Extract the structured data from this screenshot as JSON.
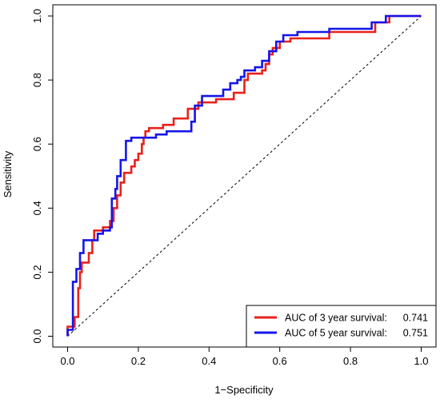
{
  "chart_data": {
    "type": "line",
    "title": "",
    "xlabel": "1−Specificity",
    "ylabel": "Sensitivity",
    "xlim": [
      0,
      1
    ],
    "ylim": [
      0,
      1
    ],
    "xticks": [
      "0.0",
      "0.2",
      "0.4",
      "0.6",
      "0.8",
      "1.0"
    ],
    "yticks": [
      "0.0",
      "0.2",
      "0.4",
      "0.6",
      "0.8",
      "1.0"
    ],
    "grid": false,
    "legend_position": "bottom-right",
    "reference_line": {
      "style": "dashed",
      "from": [
        0,
        0
      ],
      "to": [
        1,
        1
      ]
    },
    "series": [
      {
        "name": "AUC of 3 year survival:",
        "value_label": "0.741",
        "color": "#e8211c",
        "points": [
          [
            0.0,
            0.0
          ],
          [
            0.0,
            0.03
          ],
          [
            0.02,
            0.03
          ],
          [
            0.02,
            0.06
          ],
          [
            0.03,
            0.06
          ],
          [
            0.03,
            0.15
          ],
          [
            0.035,
            0.15
          ],
          [
            0.035,
            0.2
          ],
          [
            0.04,
            0.2
          ],
          [
            0.04,
            0.23
          ],
          [
            0.06,
            0.23
          ],
          [
            0.06,
            0.26
          ],
          [
            0.07,
            0.26
          ],
          [
            0.07,
            0.3
          ],
          [
            0.075,
            0.3
          ],
          [
            0.075,
            0.33
          ],
          [
            0.1,
            0.33
          ],
          [
            0.1,
            0.34
          ],
          [
            0.12,
            0.34
          ],
          [
            0.12,
            0.36
          ],
          [
            0.13,
            0.36
          ],
          [
            0.13,
            0.4
          ],
          [
            0.14,
            0.4
          ],
          [
            0.14,
            0.44
          ],
          [
            0.15,
            0.44
          ],
          [
            0.15,
            0.48
          ],
          [
            0.16,
            0.48
          ],
          [
            0.16,
            0.51
          ],
          [
            0.18,
            0.51
          ],
          [
            0.18,
            0.53
          ],
          [
            0.19,
            0.53
          ],
          [
            0.19,
            0.55
          ],
          [
            0.2,
            0.55
          ],
          [
            0.2,
            0.57
          ],
          [
            0.21,
            0.57
          ],
          [
            0.21,
            0.6
          ],
          [
            0.215,
            0.6
          ],
          [
            0.215,
            0.62
          ],
          [
            0.22,
            0.62
          ],
          [
            0.22,
            0.64
          ],
          [
            0.23,
            0.64
          ],
          [
            0.23,
            0.65
          ],
          [
            0.27,
            0.65
          ],
          [
            0.27,
            0.66
          ],
          [
            0.3,
            0.66
          ],
          [
            0.3,
            0.68
          ],
          [
            0.34,
            0.68
          ],
          [
            0.34,
            0.71
          ],
          [
            0.37,
            0.71
          ],
          [
            0.37,
            0.73
          ],
          [
            0.42,
            0.73
          ],
          [
            0.42,
            0.74
          ],
          [
            0.47,
            0.74
          ],
          [
            0.47,
            0.76
          ],
          [
            0.5,
            0.76
          ],
          [
            0.5,
            0.8
          ],
          [
            0.51,
            0.8
          ],
          [
            0.51,
            0.82
          ],
          [
            0.55,
            0.82
          ],
          [
            0.55,
            0.83
          ],
          [
            0.56,
            0.83
          ],
          [
            0.56,
            0.85
          ],
          [
            0.57,
            0.85
          ],
          [
            0.57,
            0.88
          ],
          [
            0.58,
            0.88
          ],
          [
            0.58,
            0.9
          ],
          [
            0.6,
            0.9
          ],
          [
            0.6,
            0.92
          ],
          [
            0.63,
            0.92
          ],
          [
            0.63,
            0.93
          ],
          [
            0.74,
            0.93
          ],
          [
            0.74,
            0.95
          ],
          [
            0.87,
            0.95
          ],
          [
            0.87,
            0.98
          ],
          [
            0.91,
            0.98
          ],
          [
            0.91,
            1.0
          ],
          [
            1.0,
            1.0
          ]
        ]
      },
      {
        "name": "AUC of 5 year survival:",
        "value_label": "0.751",
        "color": "#1515e8",
        "points": [
          [
            0.0,
            0.0
          ],
          [
            0.0,
            0.02
          ],
          [
            0.015,
            0.02
          ],
          [
            0.015,
            0.17
          ],
          [
            0.025,
            0.17
          ],
          [
            0.025,
            0.21
          ],
          [
            0.035,
            0.21
          ],
          [
            0.035,
            0.26
          ],
          [
            0.045,
            0.26
          ],
          [
            0.045,
            0.3
          ],
          [
            0.085,
            0.3
          ],
          [
            0.085,
            0.32
          ],
          [
            0.1,
            0.32
          ],
          [
            0.1,
            0.33
          ],
          [
            0.12,
            0.33
          ],
          [
            0.12,
            0.34
          ],
          [
            0.125,
            0.34
          ],
          [
            0.125,
            0.43
          ],
          [
            0.135,
            0.43
          ],
          [
            0.135,
            0.46
          ],
          [
            0.14,
            0.46
          ],
          [
            0.14,
            0.5
          ],
          [
            0.15,
            0.5
          ],
          [
            0.15,
            0.55
          ],
          [
            0.165,
            0.55
          ],
          [
            0.165,
            0.61
          ],
          [
            0.18,
            0.61
          ],
          [
            0.18,
            0.62
          ],
          [
            0.25,
            0.62
          ],
          [
            0.25,
            0.63
          ],
          [
            0.28,
            0.63
          ],
          [
            0.28,
            0.64
          ],
          [
            0.35,
            0.64
          ],
          [
            0.35,
            0.67
          ],
          [
            0.36,
            0.67
          ],
          [
            0.36,
            0.72
          ],
          [
            0.38,
            0.72
          ],
          [
            0.38,
            0.75
          ],
          [
            0.44,
            0.75
          ],
          [
            0.44,
            0.77
          ],
          [
            0.46,
            0.77
          ],
          [
            0.46,
            0.79
          ],
          [
            0.48,
            0.79
          ],
          [
            0.48,
            0.8
          ],
          [
            0.49,
            0.8
          ],
          [
            0.49,
            0.81
          ],
          [
            0.5,
            0.81
          ],
          [
            0.5,
            0.83
          ],
          [
            0.53,
            0.83
          ],
          [
            0.53,
            0.84
          ],
          [
            0.55,
            0.84
          ],
          [
            0.55,
            0.86
          ],
          [
            0.57,
            0.86
          ],
          [
            0.57,
            0.89
          ],
          [
            0.59,
            0.89
          ],
          [
            0.59,
            0.92
          ],
          [
            0.61,
            0.92
          ],
          [
            0.61,
            0.94
          ],
          [
            0.65,
            0.94
          ],
          [
            0.65,
            0.95
          ],
          [
            0.74,
            0.95
          ],
          [
            0.74,
            0.96
          ],
          [
            0.86,
            0.96
          ],
          [
            0.86,
            0.98
          ],
          [
            0.9,
            0.98
          ],
          [
            0.9,
            1.0
          ],
          [
            1.0,
            1.0
          ]
        ]
      }
    ]
  }
}
